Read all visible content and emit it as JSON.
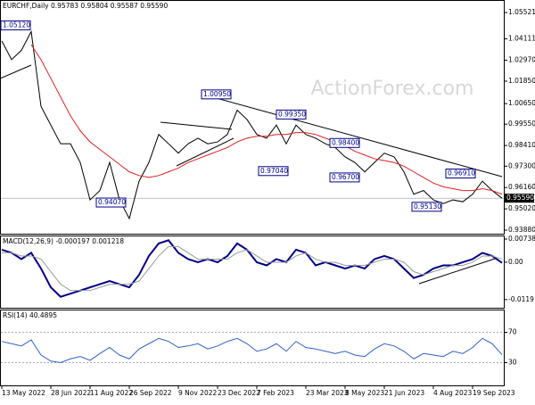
{
  "chart_data": [
    {
      "type": "line",
      "title": "EURCHF,Daily  0.95783 0.95804 0.95587 0.95590",
      "watermark": "ActionForex.com",
      "ylim": [
        0.9369,
        1.0619
      ],
      "yticks": [
        1.05521,
        1.04111,
        {
          "value": 1.0297,
          "label": "1.02970"
        },
        {
          "value": 1.0185,
          "label": "1.01850"
        },
        {
          "value": 1.0065,
          "label": "1.00650"
        },
        {
          "value": 0.9955,
          "label": "0.99550"
        },
        {
          "value": 0.9841,
          "label": "0.98410"
        },
        {
          "value": 0.973,
          "label": "0.97300"
        },
        {
          "value": 0.9616,
          "label": "0.96160"
        },
        {
          "value": 0.9502,
          "label": "0.95020"
        },
        {
          "value": 0.9388,
          "label": "0.93880"
        }
      ],
      "current_price": {
        "value": 0.9559,
        "label": "0.95590"
      },
      "annotations": [
        {
          "value": 1.0512,
          "label": "1.05120"
        },
        {
          "value": 0.9407,
          "label": "0.94070"
        },
        {
          "value": 1.0095,
          "label": "1.00950"
        },
        {
          "value": 0.9935,
          "label": "0.99350"
        },
        {
          "value": 0.9704,
          "label": "0.97040"
        },
        {
          "value": 0.984,
          "label": "0.98400"
        },
        {
          "value": 0.967,
          "label": "0.96700"
        },
        {
          "value": 0.9691,
          "label": "0.96910"
        },
        {
          "value": 0.9513,
          "label": "0.95130"
        }
      ],
      "series": [
        {
          "color": "#000000",
          "values": [
            1.04,
            1.03,
            1.035,
            1.045,
            1.005,
            0.995,
            0.985,
            0.985,
            0.975,
            0.955,
            0.96,
            0.975,
            0.955,
            0.945,
            0.965,
            0.975,
            0.99,
            0.985,
            0.98,
            0.985,
            0.988,
            0.985,
            0.986,
            0.99,
            1.003,
            0.998,
            0.99,
            0.988,
            0.995,
            0.985,
            0.995,
            0.99,
            0.988,
            0.985,
            0.983,
            0.978,
            0.975,
            0.97,
            0.975,
            0.98,
            0.978,
            0.97,
            0.958,
            0.96,
            0.955,
            0.953,
            0.955,
            0.954,
            0.958,
            0.965,
            0.96,
            0.9559
          ]
        },
        {
          "color": "#e02020",
          "values": [
            null,
            null,
            null,
            1.038,
            1.03,
            1.02,
            1.01,
            1.0,
            0.992,
            0.986,
            0.982,
            0.978,
            0.974,
            0.97,
            0.968,
            0.967,
            0.968,
            0.97,
            0.972,
            0.975,
            0.977,
            0.979,
            0.981,
            0.983,
            0.986,
            0.988,
            0.989,
            0.989,
            0.99,
            0.99,
            0.991,
            0.991,
            0.99,
            0.988,
            0.986,
            0.984,
            0.981,
            0.979,
            0.977,
            0.976,
            0.975,
            0.973,
            0.97,
            0.967,
            0.964,
            0.962,
            0.961,
            0.96,
            0.96,
            0.961,
            0.96,
            0.958
          ]
        }
      ]
    },
    {
      "type": "line",
      "title": "MACD(12,26,9) -0.000197 0.001218",
      "ylim": [
        -0.0145,
        0.00852
      ],
      "yticks": [
        0.007384,
        {
          "value": 0,
          "label": "0.00"
        },
        -0.0119
      ],
      "series": [
        {
          "color": "#00008b",
          "values": [
            0.004,
            0.003,
            0.001,
            0.003,
            -0.002,
            -0.008,
            -0.011,
            -0.01,
            -0.009,
            -0.008,
            -0.007,
            -0.006,
            -0.007,
            -0.008,
            -0.004,
            0.002,
            0.006,
            0.007,
            0.003,
            0.001,
            0.0,
            0.001,
            0.0,
            0.002,
            0.006,
            0.004,
            0.0,
            -0.001,
            0.001,
            0.0,
            0.004,
            0.003,
            -0.001,
            0.0,
            -0.001,
            -0.002,
            -0.001,
            -0.002,
            0.001,
            0.002,
            0.001,
            -0.002,
            -0.005,
            -0.004,
            -0.002,
            -0.001,
            -0.001,
            0.0,
            0.001,
            0.003,
            0.002,
            -0.0002
          ]
        },
        {
          "color": "#9a9a9a",
          "values": [
            0.003,
            0.003,
            0.002,
            0.002,
            0.001,
            -0.003,
            -0.007,
            -0.009,
            -0.009,
            -0.009,
            -0.008,
            -0.007,
            -0.007,
            -0.007,
            -0.006,
            -0.002,
            0.002,
            0.005,
            0.005,
            0.003,
            0.001,
            0.001,
            0.001,
            0.001,
            0.003,
            0.004,
            0.002,
            0.0,
            0.0,
            0.0,
            0.002,
            0.003,
            0.001,
            0.0,
            0.0,
            -0.001,
            -0.001,
            -0.001,
            0.0,
            0.001,
            0.001,
            0.0,
            -0.003,
            -0.004,
            -0.003,
            -0.002,
            -0.001,
            -0.001,
            0.0,
            0.002,
            0.002,
            0.001
          ]
        }
      ]
    },
    {
      "type": "line",
      "title": "RSI(14) 40.4895",
      "ylim": [
        0,
        100
      ],
      "yticks": [
        70,
        30
      ],
      "categories": [
        "13 May 2022",
        null,
        null,
        null,
        null,
        "28 Jun 2022",
        null,
        null,
        null,
        "11 Aug 2022",
        null,
        null,
        null,
        "26 Sep 2022",
        null,
        null,
        null,
        null,
        "9 Nov 2022",
        null,
        null,
        null,
        "23 Dec 2022",
        null,
        null,
        null,
        "7 Feb 2023",
        null,
        null,
        null,
        null,
        "23 Mar 2023",
        null,
        null,
        null,
        "8 May 2023",
        null,
        null,
        null,
        "21 Jun 2023",
        null,
        null,
        null,
        null,
        "4 Aug 2023",
        null,
        null,
        null,
        "19 Sep 2023",
        null,
        null,
        null
      ],
      "series": [
        {
          "color": "#2f5fd0",
          "values": [
            58,
            55,
            52,
            60,
            40,
            32,
            30,
            35,
            38,
            33,
            42,
            50,
            40,
            35,
            48,
            55,
            62,
            58,
            50,
            52,
            55,
            48,
            52,
            58,
            62,
            55,
            45,
            48,
            55,
            45,
            58,
            50,
            48,
            45,
            42,
            45,
            40,
            38,
            48,
            55,
            52,
            45,
            35,
            42,
            40,
            38,
            45,
            42,
            50,
            62,
            55,
            40.4895
          ]
        }
      ]
    }
  ]
}
